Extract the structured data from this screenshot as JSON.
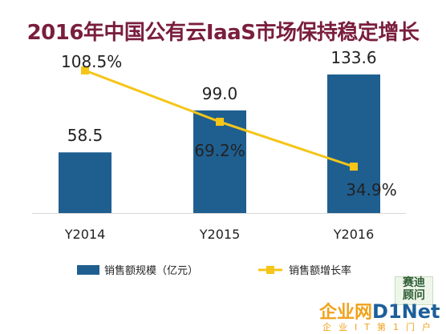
{
  "title": "2016年中国公有云IaaS市场保持稳定增长",
  "watermark": {
    "stamp": "赛迪顾问",
    "logo_cn": "企业网",
    "logo_en": "D1Net",
    "subtitle": "企业IT第1门户"
  },
  "colors": {
    "bar": "#1f5f90",
    "line": "#f5c518",
    "title": "#7a1e3e",
    "axis": "#d9d9d9"
  },
  "chart_data": {
    "type": "bar",
    "categories": [
      "Y2014",
      "Y2015",
      "Y2016"
    ],
    "series": [
      {
        "name": "销售额规模（亿元）",
        "type": "bar",
        "values": [
          58.5,
          99.0,
          133.6
        ],
        "labels": [
          "58.5",
          "99.0",
          "133.6"
        ]
      },
      {
        "name": "销售额增长率",
        "type": "line",
        "values": [
          108.5,
          69.2,
          34.9
        ],
        "labels": [
          "108.5%",
          "69.2%",
          "34.9%"
        ]
      }
    ],
    "bar_axis_range": [
      0,
      150
    ],
    "line_axis_range": [
      0,
      120
    ],
    "grid": false,
    "legend_position": "bottom"
  }
}
